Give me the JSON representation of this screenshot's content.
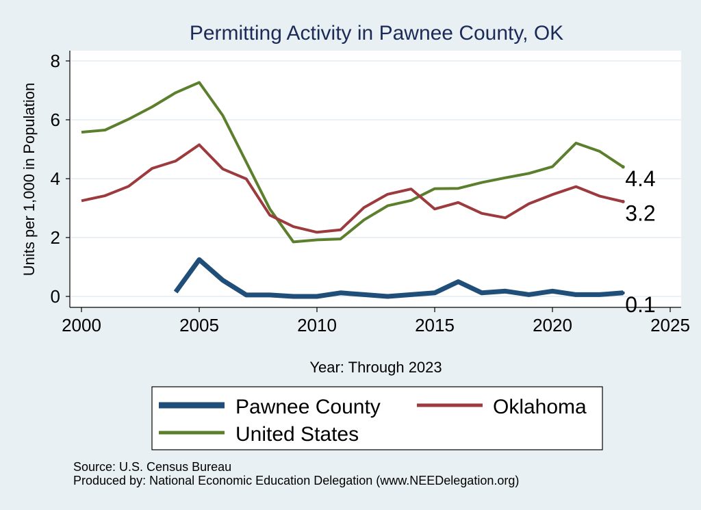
{
  "chart_data": {
    "type": "line",
    "title": "Permitting Activity in Pawnee County, OK",
    "xlabel": "Year: Through 2023",
    "ylabel": "Units per 1,000 in Population",
    "xlim": [
      2000,
      2025
    ],
    "ylim": [
      0,
      8
    ],
    "x_ticks": [
      2000,
      2005,
      2010,
      2015,
      2020,
      2025
    ],
    "y_ticks": [
      0,
      2,
      4,
      6,
      8
    ],
    "grid": true,
    "series": [
      {
        "name": "Pawnee County",
        "color": "#1f4e79",
        "x": [
          2004,
          2005,
          2006,
          2007,
          2008,
          2009,
          2010,
          2011,
          2012,
          2013,
          2014,
          2015,
          2016,
          2017,
          2018,
          2019,
          2020,
          2021,
          2022,
          2023
        ],
        "values": [
          0.15,
          1.25,
          0.55,
          0.05,
          0.05,
          0.0,
          0.0,
          0.12,
          0.06,
          0.0,
          0.06,
          0.12,
          0.5,
          0.12,
          0.18,
          0.06,
          0.18,
          0.06,
          0.06,
          0.12
        ],
        "end_label": "0.1"
      },
      {
        "name": "Oklahoma",
        "color": "#9c3a3e",
        "x": [
          2000,
          2001,
          2002,
          2003,
          2004,
          2005,
          2006,
          2007,
          2008,
          2009,
          2010,
          2011,
          2012,
          2013,
          2014,
          2015,
          2016,
          2017,
          2018,
          2019,
          2020,
          2021,
          2022,
          2023
        ],
        "values": [
          3.25,
          3.42,
          3.74,
          4.35,
          4.6,
          5.15,
          4.33,
          3.99,
          2.76,
          2.37,
          2.18,
          2.26,
          3.02,
          3.47,
          3.65,
          2.97,
          3.19,
          2.82,
          2.67,
          3.15,
          3.46,
          3.73,
          3.41,
          3.22
        ],
        "end_label": "3.2"
      },
      {
        "name": "United States",
        "color": "#5b7f2c",
        "x": [
          2000,
          2001,
          2002,
          2003,
          2004,
          2005,
          2006,
          2007,
          2008,
          2009,
          2010,
          2011,
          2012,
          2013,
          2014,
          2015,
          2016,
          2017,
          2018,
          2019,
          2020,
          2021,
          2022,
          2023
        ],
        "values": [
          5.58,
          5.65,
          6.02,
          6.44,
          6.92,
          7.27,
          6.15,
          4.56,
          2.97,
          1.85,
          1.92,
          1.95,
          2.6,
          3.08,
          3.26,
          3.66,
          3.67,
          3.87,
          4.03,
          4.18,
          4.41,
          5.21,
          4.93,
          4.4
        ],
        "end_label": "4.4"
      }
    ],
    "legend": {
      "placement": "bottom",
      "entries": [
        "Pawnee County",
        "Oklahoma",
        "United States"
      ]
    },
    "notes": [
      "Source: U.S. Census Bureau",
      "Produced by: National Economic Education Delegation (www.NEEDelegation.org)"
    ]
  }
}
